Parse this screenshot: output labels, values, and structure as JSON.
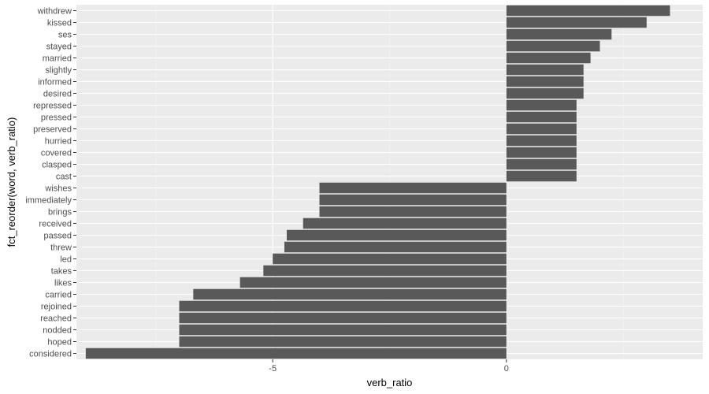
{
  "chart_data": {
    "type": "bar",
    "orientation": "horizontal",
    "xlabel": "verb_ratio",
    "ylabel": "fct_reorder(word, verb_ratio)",
    "xlim": [
      -9.2,
      4.2
    ],
    "xticks": [
      -5,
      0
    ],
    "grid": true,
    "categories": [
      "withdrew",
      "kissed",
      "ses",
      "stayed",
      "married",
      "slightly",
      "informed",
      "desired",
      "repressed",
      "pressed",
      "preserved",
      "hurried",
      "covered",
      "clasped",
      "cast",
      "wishes",
      "immediately",
      "brings",
      "received",
      "passed",
      "threw",
      "led",
      "takes",
      "likes",
      "carried",
      "rejoined",
      "reached",
      "nodded",
      "hoped",
      "considered"
    ],
    "values": [
      3.5,
      3.0,
      2.25,
      2.0,
      1.8,
      1.65,
      1.65,
      1.65,
      1.5,
      1.5,
      1.5,
      1.5,
      1.5,
      1.5,
      1.5,
      -4.0,
      -4.0,
      -4.0,
      -4.35,
      -4.7,
      -4.75,
      -5.0,
      -5.2,
      -5.7,
      -6.7,
      -7.0,
      -7.0,
      -7.0,
      -7.0,
      -9.0
    ],
    "colors": {
      "bar": "#595959",
      "panel": "#ebebeb",
      "grid_major": "#ffffff",
      "grid_minor": "#f5f5f5"
    }
  }
}
